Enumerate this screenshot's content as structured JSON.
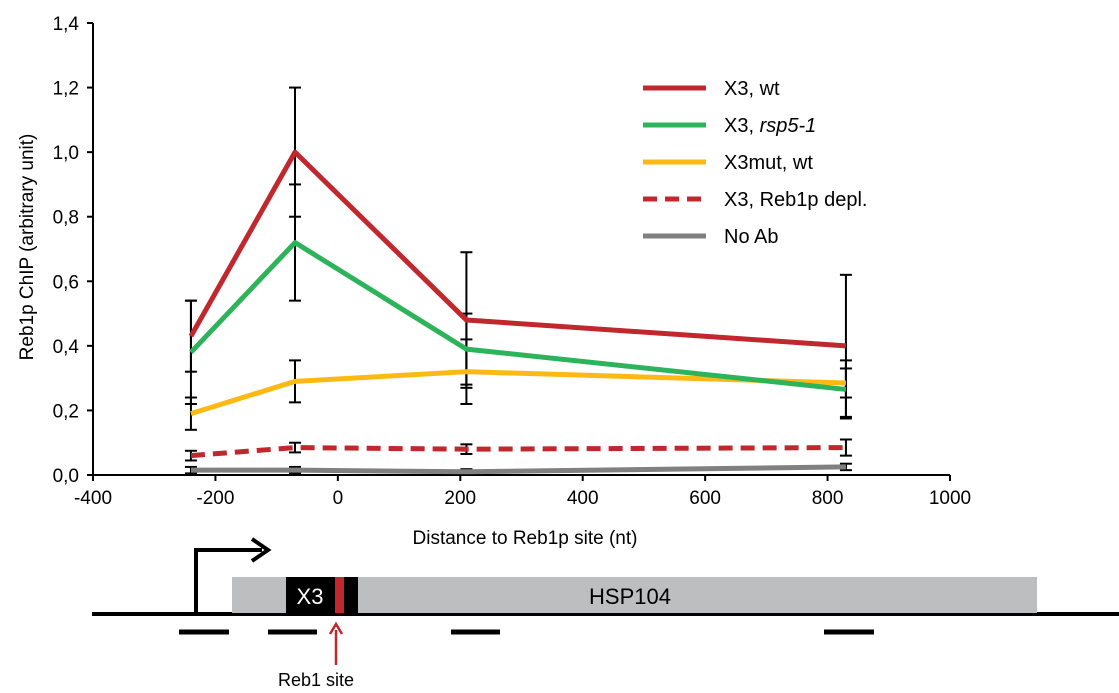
{
  "chart_data": {
    "type": "line",
    "title": "",
    "xlabel": "Distance to Reb1p site (nt)",
    "ylabel": "Reb1p ChIP (arbitrary unit)",
    "xlim": [
      -400,
      1000
    ],
    "ylim": [
      0,
      1.4
    ],
    "x_ticks": [
      "-400",
      "-200",
      "0",
      "200",
      "400",
      "600",
      "800",
      "1000"
    ],
    "y_ticks": [
      "0,0",
      "0,2",
      "0,4",
      "0,6",
      "0,8",
      "1,0",
      "1,2",
      "1,4"
    ],
    "x": [
      -240,
      -70,
      210,
      830
    ],
    "legend_position": "top-right",
    "series": [
      {
        "name": "X3, wt",
        "color": "#c0282d",
        "dash": false,
        "values": [
          0.43,
          1.0,
          0.48,
          0.4
        ],
        "errors": [
          0.11,
          0.2,
          0.21,
          0.22
        ]
      },
      {
        "name": "X3, ",
        "name_italic": "rsp5-1",
        "color": "#2db35a",
        "dash": false,
        "values": [
          0.38,
          0.72,
          0.39,
          0.265
        ],
        "errors": [
          0.16,
          0.18,
          0.11,
          0.09
        ]
      },
      {
        "name": "X3mut, wt",
        "color": "#fdb913",
        "dash": false,
        "values": [
          0.19,
          0.29,
          0.32,
          0.285
        ],
        "errors": [
          0.05,
          0.065,
          0.1,
          0.045
        ]
      },
      {
        "name": "X3, Reb1p depl.",
        "color": "#c0282d",
        "dash": true,
        "values": [
          0.06,
          0.085,
          0.08,
          0.085
        ],
        "errors": [
          0.015,
          0.015,
          0.015,
          0.025
        ]
      },
      {
        "name": "No Ab",
        "color": "#808080",
        "dash": false,
        "values": [
          0.015,
          0.015,
          0.01,
          0.025
        ],
        "errors": [
          0.01,
          0.01,
          0.008,
          0.01
        ]
      }
    ]
  },
  "gene_diagram": {
    "gene_label": "HSP104",
    "element_label": "X3",
    "site_label": "Reb1 site",
    "gene_color": "#bcbec0",
    "element_color": "#000000",
    "site_color": "#c0282d"
  }
}
